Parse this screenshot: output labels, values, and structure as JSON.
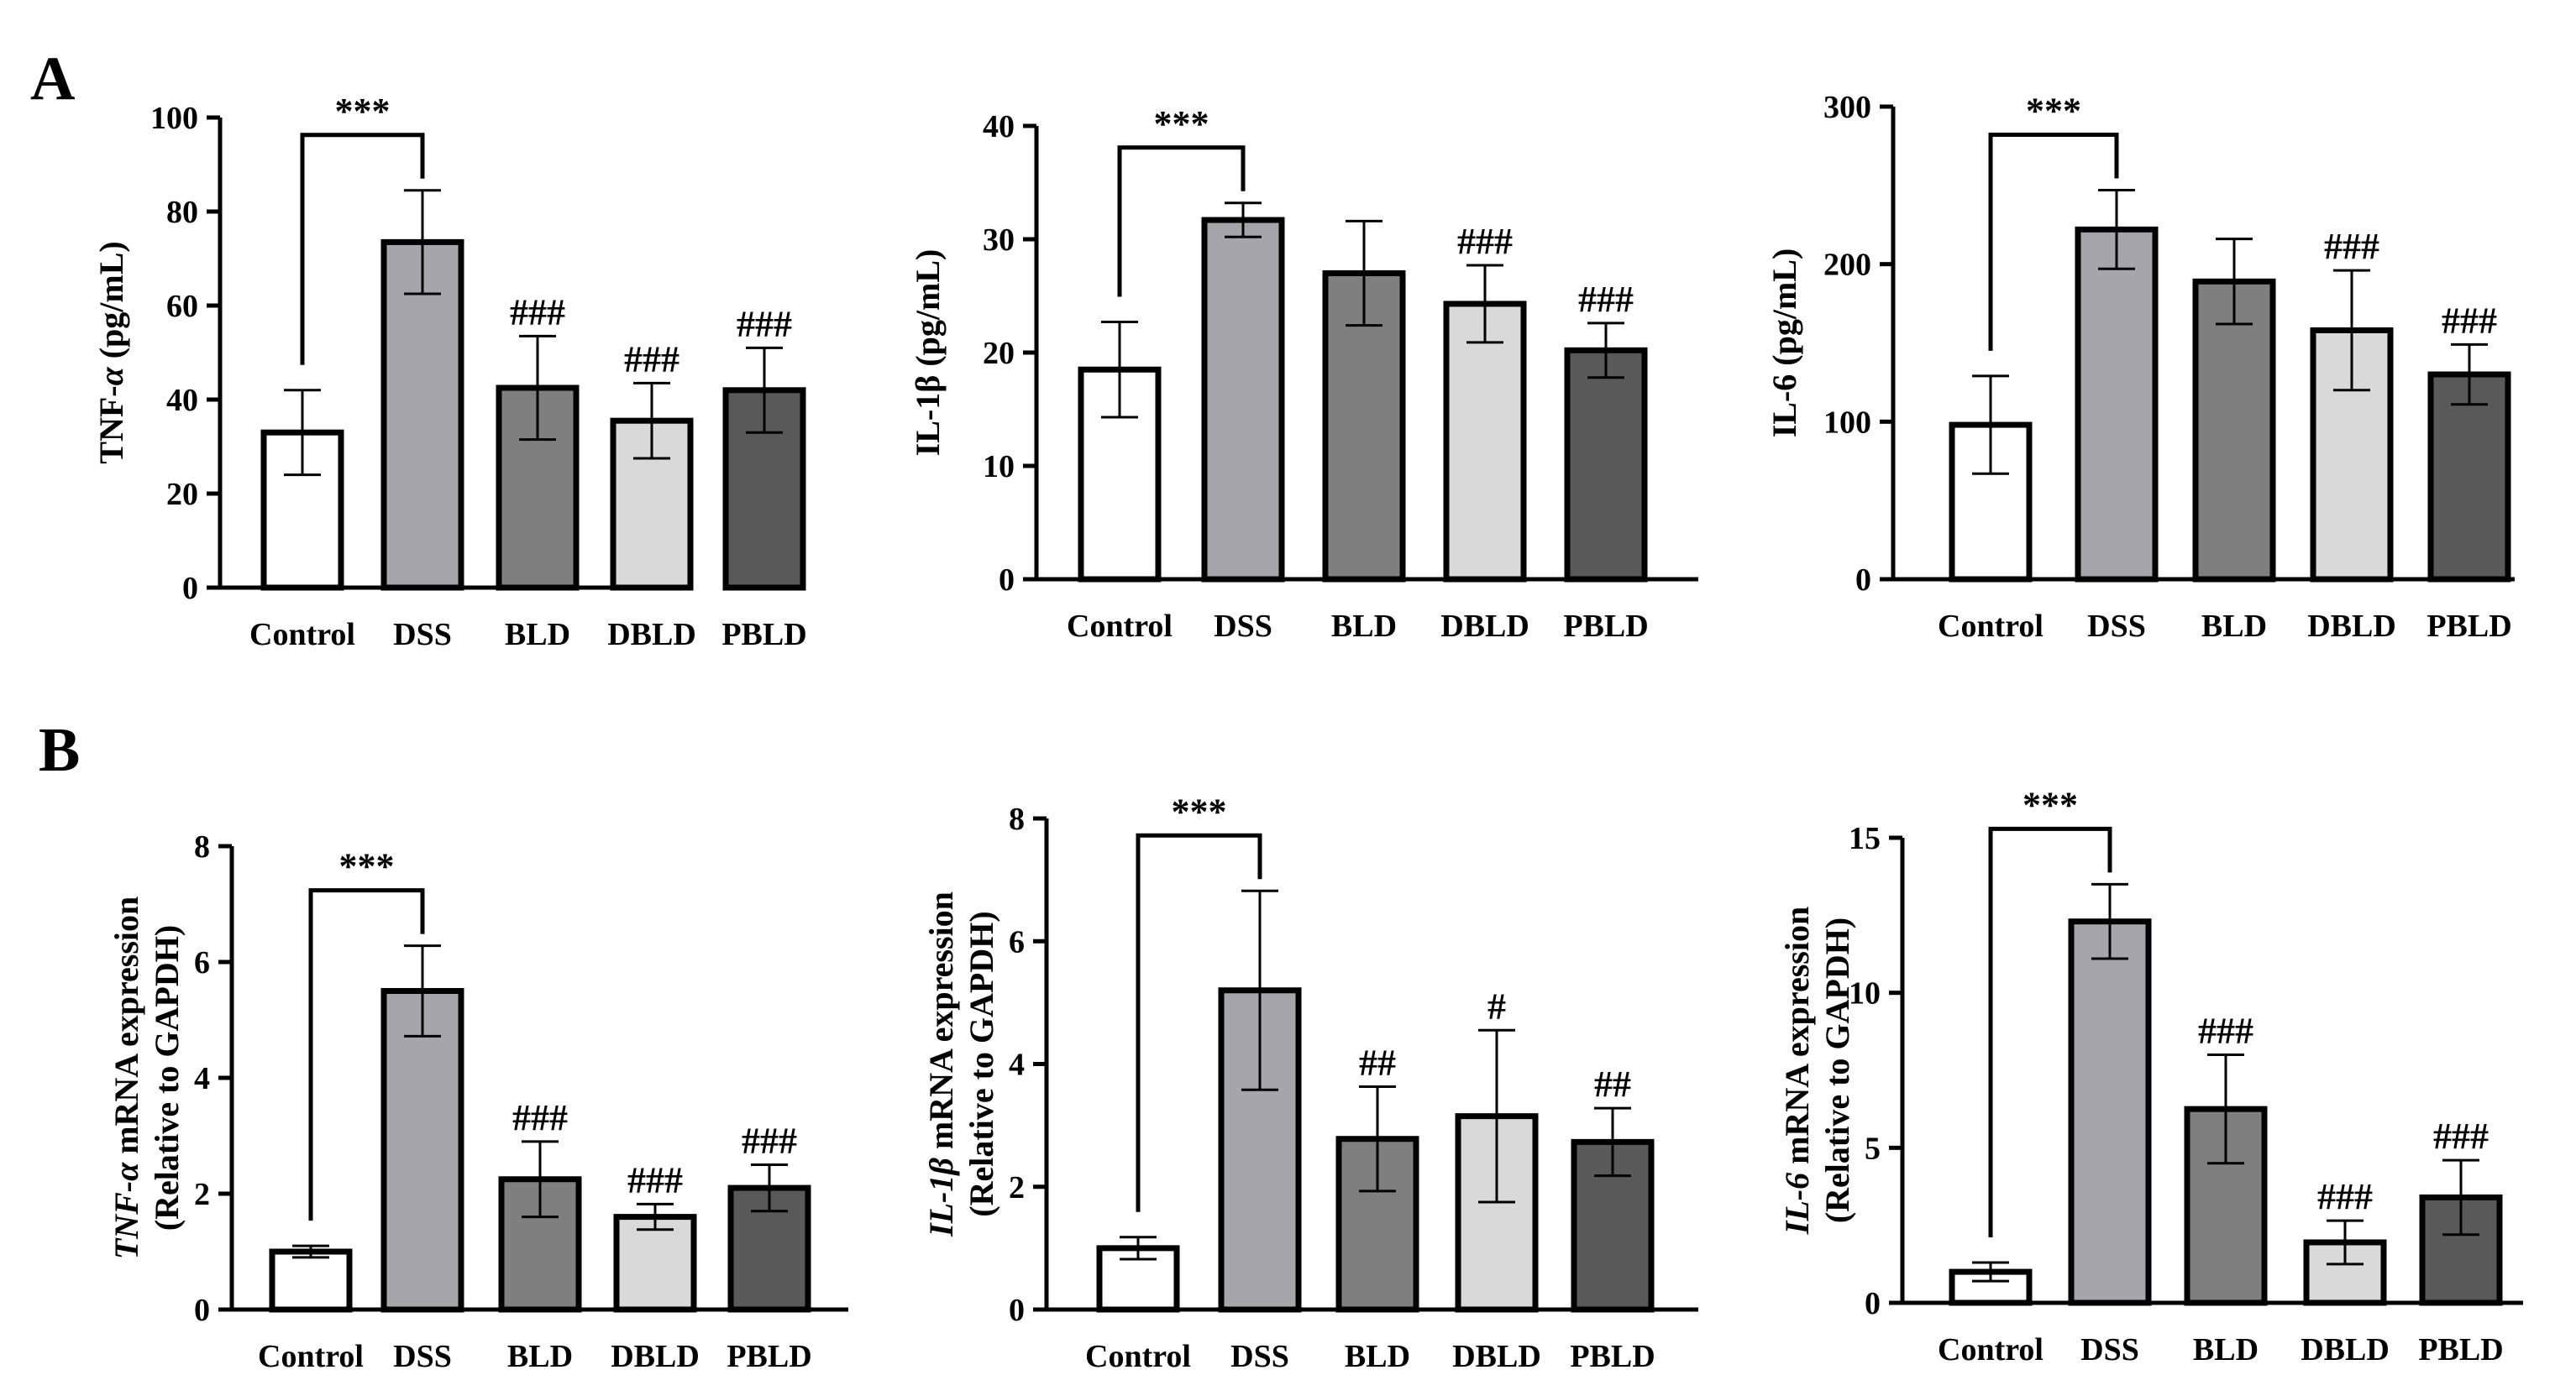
{
  "panel_labels": [
    "A",
    "B"
  ],
  "colors": {
    "control": "#ffffff",
    "dss": "#a6a6aa",
    "bld": "#7f7f7f",
    "dbld": "#d9d9d9",
    "pbld": "#595959",
    "stroke": "#000000"
  },
  "chart_data": [
    {
      "id": "tnf-protein",
      "panel": "A",
      "type": "bar",
      "categories": [
        "Control",
        "DSS",
        "BLD",
        "DBLD",
        "PBLD"
      ],
      "values": [
        33,
        73.5,
        42.5,
        35.5,
        42
      ],
      "errors": [
        9,
        11,
        11,
        8,
        9
      ],
      "annotations": [
        "",
        "",
        "###",
        "###",
        "###"
      ],
      "bracket_label": "***",
      "ylabel_parts": [
        {
          "t": "TNF-",
          "i": false
        },
        {
          "t": "α",
          "i": true
        },
        {
          "t": " (pg/mL)",
          "i": false
        }
      ],
      "ylim": [
        0,
        100
      ],
      "yticks": [
        0,
        20,
        40,
        60,
        80,
        100
      ]
    },
    {
      "id": "il1b-protein",
      "panel": "A",
      "type": "bar",
      "categories": [
        "Control",
        "DSS",
        "BLD",
        "DBLD",
        "PBLD"
      ],
      "values": [
        18.5,
        31.7,
        27,
        24.3,
        20.2
      ],
      "errors": [
        4.2,
        1.5,
        4.6,
        3.4,
        2.4
      ],
      "annotations": [
        "",
        "",
        "",
        "###",
        "###"
      ],
      "bracket_label": "***",
      "ylabel_parts": [
        {
          "t": "IL-1β (pg/mL)",
          "i": false
        }
      ],
      "ylim": [
        0,
        40
      ],
      "yticks": [
        0,
        10,
        20,
        30,
        40
      ]
    },
    {
      "id": "il6-protein",
      "panel": "A",
      "type": "bar",
      "categories": [
        "Control",
        "DSS",
        "BLD",
        "DBLD",
        "PBLD"
      ],
      "values": [
        98,
        222,
        189,
        158,
        130
      ],
      "errors": [
        31,
        25,
        27,
        38,
        19
      ],
      "annotations": [
        "",
        "",
        "",
        "###",
        "###"
      ],
      "bracket_label": "***",
      "ylabel_parts": [
        {
          "t": "IL-6 (pg/mL)",
          "i": false
        }
      ],
      "ylim": [
        0,
        300
      ],
      "yticks": [
        0,
        100,
        200,
        300
      ]
    },
    {
      "id": "tnf-mrna",
      "panel": "B",
      "type": "bar",
      "categories": [
        "Control",
        "DSS",
        "BLD",
        "DBLD",
        "PBLD"
      ],
      "values": [
        1.0,
        5.5,
        2.25,
        1.6,
        2.1
      ],
      "errors": [
        0.1,
        0.78,
        0.65,
        0.22,
        0.4
      ],
      "annotations": [
        "",
        "",
        "###",
        "###",
        "###"
      ],
      "bracket_label": "***",
      "ylabel_parts": [
        {
          "t": "TNF-α",
          "i": true
        },
        {
          "t": " mRNA expression",
          "i": false
        }
      ],
      "ylabel_line2": "(Relative to GAPDH)",
      "ylim": [
        0,
        8
      ],
      "yticks": [
        0,
        2,
        4,
        6,
        8
      ]
    },
    {
      "id": "il1b-mrna",
      "panel": "B",
      "type": "bar",
      "categories": [
        "Control",
        "DSS",
        "BLD",
        "DBLD",
        "PBLD"
      ],
      "values": [
        1.0,
        5.2,
        2.78,
        3.15,
        2.73
      ],
      "errors": [
        0.18,
        1.62,
        0.85,
        1.4,
        0.55
      ],
      "annotations": [
        "",
        "",
        "##",
        "#",
        "##"
      ],
      "bracket_label": "***",
      "ylabel_parts": [
        {
          "t": "IL-1β",
          "i": true
        },
        {
          "t": " mRNA expression",
          "i": false
        }
      ],
      "ylabel_line2": "(Relative to GAPDH)",
      "ylim": [
        0,
        8
      ],
      "yticks": [
        0,
        2,
        4,
        6,
        8
      ]
    },
    {
      "id": "il6-mrna",
      "panel": "B",
      "type": "bar",
      "categories": [
        "Control",
        "DSS",
        "BLD",
        "DBLD",
        "PBLD"
      ],
      "values": [
        1.0,
        12.3,
        6.25,
        1.95,
        3.4
      ],
      "errors": [
        0.3,
        1.2,
        1.75,
        0.7,
        1.2
      ],
      "annotations": [
        "",
        "",
        "###",
        "###",
        "###"
      ],
      "bracket_label": "***",
      "ylabel_parts": [
        {
          "t": "IL-6",
          "i": true
        },
        {
          "t": " mRNA expression",
          "i": false
        }
      ],
      "ylabel_line2": "(Relative to GAPDH)",
      "ylim": [
        0,
        15
      ],
      "yticks": [
        0,
        5,
        10,
        15
      ]
    }
  ]
}
